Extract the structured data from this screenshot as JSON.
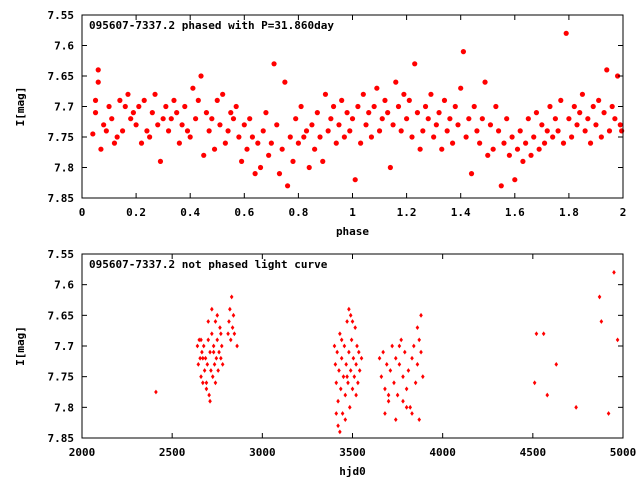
{
  "chart_data": [
    {
      "type": "scatter",
      "title": "095607-7337.2 phased with P=31.860day",
      "xlabel": "phase",
      "ylabel": "I[mag]",
      "xlim": [
        0,
        2
      ],
      "ylim": [
        7.85,
        7.55
      ],
      "y_inverted": true,
      "grid": false,
      "legend": "none",
      "marker": "filled-circle",
      "color": "#ff0000",
      "xticks": [
        0,
        0.2,
        0.4,
        0.6,
        0.8,
        1,
        1.2,
        1.4,
        1.6,
        1.8,
        2
      ],
      "xtick_labels": [
        "0",
        "0.2",
        "0.4",
        "0.6",
        "0.8",
        "1",
        "1.2",
        "1.4",
        "1.6",
        "1.8",
        "2"
      ],
      "yticks": [
        7.55,
        7.6,
        7.65,
        7.7,
        7.75,
        7.8,
        7.85
      ],
      "ytick_labels": [
        "7.55",
        "7.6",
        "7.65",
        "7.7",
        "7.75",
        "7.8",
        "7.85"
      ],
      "points": [
        [
          0.04,
          7.745
        ],
        [
          0.05,
          7.71
        ],
        [
          0.05,
          7.69
        ],
        [
          0.06,
          7.66
        ],
        [
          0.06,
          7.64
        ],
        [
          0.07,
          7.77
        ],
        [
          0.08,
          7.73
        ],
        [
          0.09,
          7.74
        ],
        [
          0.1,
          7.7
        ],
        [
          0.11,
          7.72
        ],
        [
          0.12,
          7.76
        ],
        [
          0.13,
          7.75
        ],
        [
          0.14,
          7.69
        ],
        [
          0.15,
          7.74
        ],
        [
          0.16,
          7.7
        ],
        [
          0.17,
          7.68
        ],
        [
          0.18,
          7.72
        ],
        [
          0.19,
          7.71
        ],
        [
          0.2,
          7.73
        ],
        [
          0.21,
          7.7
        ],
        [
          0.22,
          7.76
        ],
        [
          0.23,
          7.69
        ],
        [
          0.24,
          7.74
        ],
        [
          0.25,
          7.75
        ],
        [
          0.26,
          7.71
        ],
        [
          0.27,
          7.68
        ],
        [
          0.28,
          7.73
        ],
        [
          0.29,
          7.79
        ],
        [
          0.3,
          7.72
        ],
        [
          0.31,
          7.7
        ],
        [
          0.32,
          7.74
        ],
        [
          0.33,
          7.72
        ],
        [
          0.34,
          7.69
        ],
        [
          0.35,
          7.71
        ],
        [
          0.36,
          7.76
        ],
        [
          0.37,
          7.73
        ],
        [
          0.38,
          7.7
        ],
        [
          0.39,
          7.74
        ],
        [
          0.4,
          7.75
        ],
        [
          0.41,
          7.67
        ],
        [
          0.42,
          7.72
        ],
        [
          0.43,
          7.69
        ],
        [
          0.44,
          7.65
        ],
        [
          0.45,
          7.78
        ],
        [
          0.46,
          7.71
        ],
        [
          0.47,
          7.74
        ],
        [
          0.48,
          7.72
        ],
        [
          0.49,
          7.77
        ],
        [
          0.5,
          7.69
        ],
        [
          0.51,
          7.73
        ],
        [
          0.52,
          7.68
        ],
        [
          0.53,
          7.76
        ],
        [
          0.54,
          7.74
        ],
        [
          0.55,
          7.71
        ],
        [
          0.56,
          7.72
        ],
        [
          0.57,
          7.7
        ],
        [
          0.58,
          7.75
        ],
        [
          0.59,
          7.79
        ],
        [
          0.6,
          7.73
        ],
        [
          0.61,
          7.77
        ],
        [
          0.62,
          7.72
        ],
        [
          0.63,
          7.75
        ],
        [
          0.64,
          7.81
        ],
        [
          0.65,
          7.76
        ],
        [
          0.66,
          7.8
        ],
        [
          0.67,
          7.74
        ],
        [
          0.68,
          7.71
        ],
        [
          0.69,
          7.78
        ],
        [
          0.7,
          7.76
        ],
        [
          0.71,
          7.63
        ],
        [
          0.72,
          7.73
        ],
        [
          0.73,
          7.81
        ],
        [
          0.74,
          7.77
        ],
        [
          0.75,
          7.66
        ],
        [
          0.76,
          7.83
        ],
        [
          0.77,
          7.75
        ],
        [
          0.78,
          7.79
        ],
        [
          0.79,
          7.72
        ],
        [
          0.8,
          7.76
        ],
        [
          0.81,
          7.7
        ],
        [
          0.82,
          7.75
        ],
        [
          0.83,
          7.74
        ],
        [
          0.84,
          7.8
        ],
        [
          0.85,
          7.73
        ],
        [
          0.86,
          7.77
        ],
        [
          0.87,
          7.71
        ],
        [
          0.88,
          7.75
        ],
        [
          0.89,
          7.79
        ],
        [
          0.9,
          7.68
        ],
        [
          0.91,
          7.74
        ],
        [
          0.92,
          7.72
        ],
        [
          0.93,
          7.7
        ],
        [
          0.94,
          7.76
        ],
        [
          0.95,
          7.73
        ],
        [
          0.96,
          7.69
        ],
        [
          0.97,
          7.75
        ],
        [
          0.98,
          7.71
        ],
        [
          0.99,
          7.74
        ],
        [
          1.0,
          7.72
        ],
        [
          1.01,
          7.82
        ],
        [
          1.02,
          7.7
        ],
        [
          1.03,
          7.76
        ],
        [
          1.04,
          7.68
        ],
        [
          1.05,
          7.73
        ],
        [
          1.06,
          7.71
        ],
        [
          1.07,
          7.75
        ],
        [
          1.08,
          7.7
        ],
        [
          1.09,
          7.67
        ],
        [
          1.1,
          7.74
        ],
        [
          1.11,
          7.72
        ],
        [
          1.12,
          7.69
        ],
        [
          1.13,
          7.71
        ],
        [
          1.14,
          7.8
        ],
        [
          1.15,
          7.73
        ],
        [
          1.16,
          7.66
        ],
        [
          1.17,
          7.7
        ],
        [
          1.18,
          7.74
        ],
        [
          1.19,
          7.68
        ],
        [
          1.2,
          7.72
        ],
        [
          1.21,
          7.69
        ],
        [
          1.22,
          7.75
        ],
        [
          1.23,
          7.63
        ],
        [
          1.24,
          7.71
        ],
        [
          1.25,
          7.77
        ],
        [
          1.26,
          7.74
        ],
        [
          1.27,
          7.7
        ],
        [
          1.28,
          7.72
        ],
        [
          1.29,
          7.68
        ],
        [
          1.3,
          7.75
        ],
        [
          1.31,
          7.73
        ],
        [
          1.32,
          7.71
        ],
        [
          1.33,
          7.77
        ],
        [
          1.34,
          7.69
        ],
        [
          1.35,
          7.74
        ],
        [
          1.36,
          7.72
        ],
        [
          1.37,
          7.76
        ],
        [
          1.38,
          7.7
        ],
        [
          1.39,
          7.73
        ],
        [
          1.4,
          7.67
        ],
        [
          1.41,
          7.61
        ],
        [
          1.42,
          7.75
        ],
        [
          1.43,
          7.72
        ],
        [
          1.44,
          7.81
        ],
        [
          1.45,
          7.7
        ],
        [
          1.46,
          7.74
        ],
        [
          1.47,
          7.76
        ],
        [
          1.48,
          7.72
        ],
        [
          1.49,
          7.66
        ],
        [
          1.5,
          7.78
        ],
        [
          1.51,
          7.73
        ],
        [
          1.52,
          7.77
        ],
        [
          1.53,
          7.7
        ],
        [
          1.54,
          7.74
        ],
        [
          1.55,
          7.83
        ],
        [
          1.56,
          7.76
        ],
        [
          1.57,
          7.72
        ],
        [
          1.58,
          7.78
        ],
        [
          1.59,
          7.75
        ],
        [
          1.6,
          7.82
        ],
        [
          1.61,
          7.77
        ],
        [
          1.62,
          7.74
        ],
        [
          1.63,
          7.79
        ],
        [
          1.64,
          7.76
        ],
        [
          1.65,
          7.72
        ],
        [
          1.66,
          7.78
        ],
        [
          1.67,
          7.75
        ],
        [
          1.68,
          7.71
        ],
        [
          1.69,
          7.77
        ],
        [
          1.7,
          7.73
        ],
        [
          1.71,
          7.76
        ],
        [
          1.72,
          7.74
        ],
        [
          1.73,
          7.7
        ],
        [
          1.74,
          7.75
        ],
        [
          1.75,
          7.72
        ],
        [
          1.76,
          7.74
        ],
        [
          1.77,
          7.69
        ],
        [
          1.78,
          7.76
        ],
        [
          1.79,
          7.58
        ],
        [
          1.8,
          7.72
        ],
        [
          1.81,
          7.75
        ],
        [
          1.82,
          7.7
        ],
        [
          1.83,
          7.73
        ],
        [
          1.84,
          7.71
        ],
        [
          1.85,
          7.68
        ],
        [
          1.86,
          7.74
        ],
        [
          1.87,
          7.72
        ],
        [
          1.88,
          7.76
        ],
        [
          1.89,
          7.7
        ],
        [
          1.9,
          7.73
        ],
        [
          1.91,
          7.69
        ],
        [
          1.92,
          7.75
        ],
        [
          1.93,
          7.71
        ],
        [
          1.94,
          7.64
        ],
        [
          1.95,
          7.74
        ],
        [
          1.96,
          7.7
        ],
        [
          1.97,
          7.72
        ],
        [
          1.98,
          7.65
        ],
        [
          1.99,
          7.73
        ],
        [
          1.995,
          7.74
        ]
      ]
    },
    {
      "type": "scatter",
      "title": "095607-7337.2 not phased light curve",
      "xlabel": "hjd0",
      "ylabel": "I[mag]",
      "xlim": [
        2000,
        5000
      ],
      "ylim": [
        7.85,
        7.55
      ],
      "y_inverted": true,
      "grid": false,
      "legend": "none",
      "marker": "filled-diamond",
      "color": "#ff0000",
      "xticks": [
        2000,
        2500,
        3000,
        3500,
        4000,
        4500,
        5000
      ],
      "xtick_labels": [
        "2000",
        "2500",
        "3000",
        "3500",
        "4000",
        "4500",
        "5000"
      ],
      "yticks": [
        7.55,
        7.6,
        7.65,
        7.7,
        7.75,
        7.8,
        7.85
      ],
      "ytick_labels": [
        "7.55",
        "7.6",
        "7.65",
        "7.7",
        "7.75",
        "7.8",
        "7.85"
      ],
      "points": [
        [
          2410,
          7.775
        ],
        [
          2640,
          7.7
        ],
        [
          2645,
          7.73
        ],
        [
          2650,
          7.69
        ],
        [
          2655,
          7.72
        ],
        [
          2660,
          7.75
        ],
        [
          2665,
          7.71
        ],
        [
          2670,
          7.76
        ],
        [
          2675,
          7.7
        ],
        [
          2680,
          7.74
        ],
        [
          2685,
          7.72
        ],
        [
          2690,
          7.77
        ],
        [
          2695,
          7.73
        ],
        [
          2700,
          7.69
        ],
        [
          2705,
          7.78
        ],
        [
          2710,
          7.71
        ],
        [
          2715,
          7.74
        ],
        [
          2720,
          7.68
        ],
        [
          2725,
          7.75
        ],
        [
          2730,
          7.7
        ],
        [
          2735,
          7.73
        ],
        [
          2740,
          7.66
        ],
        [
          2745,
          7.72
        ],
        [
          2750,
          7.69
        ],
        [
          2755,
          7.74
        ],
        [
          2760,
          7.71
        ],
        [
          2765,
          7.67
        ],
        [
          2770,
          7.72
        ],
        [
          2775,
          7.7
        ],
        [
          2780,
          7.73
        ],
        [
          2700,
          7.66
        ],
        [
          2710,
          7.79
        ],
        [
          2720,
          7.64
        ],
        [
          2690,
          7.76
        ],
        [
          2670,
          7.72
        ],
        [
          2660,
          7.69
        ],
        [
          2730,
          7.71
        ],
        [
          2750,
          7.65
        ],
        [
          2770,
          7.68
        ],
        [
          2740,
          7.76
        ],
        [
          2810,
          7.68
        ],
        [
          2815,
          7.66
        ],
        [
          2820,
          7.64
        ],
        [
          2825,
          7.69
        ],
        [
          2830,
          7.62
        ],
        [
          2835,
          7.67
        ],
        [
          2840,
          7.65
        ],
        [
          2845,
          7.68
        ],
        [
          2860,
          7.7
        ],
        [
          3400,
          7.7
        ],
        [
          3405,
          7.73
        ],
        [
          3410,
          7.76
        ],
        [
          3415,
          7.71
        ],
        [
          3420,
          7.79
        ],
        [
          3425,
          7.74
        ],
        [
          3430,
          7.68
        ],
        [
          3435,
          7.77
        ],
        [
          3440,
          7.72
        ],
        [
          3445,
          7.81
        ],
        [
          3450,
          7.75
        ],
        [
          3455,
          7.7
        ],
        [
          3460,
          7.78
        ],
        [
          3465,
          7.73
        ],
        [
          3470,
          7.66
        ],
        [
          3475,
          7.76
        ],
        [
          3480,
          7.71
        ],
        [
          3485,
          7.8
        ],
        [
          3490,
          7.74
        ],
        [
          3495,
          7.69
        ],
        [
          3500,
          7.77
        ],
        [
          3505,
          7.72
        ],
        [
          3510,
          7.75
        ],
        [
          3515,
          7.67
        ],
        [
          3520,
          7.73
        ],
        [
          3525,
          7.7
        ],
        [
          3530,
          7.76
        ],
        [
          3535,
          7.71
        ],
        [
          3540,
          7.74
        ],
        [
          3550,
          7.72
        ],
        [
          3420,
          7.83
        ],
        [
          3430,
          7.84
        ],
        [
          3480,
          7.64
        ],
        [
          3490,
          7.65
        ],
        [
          3500,
          7.66
        ],
        [
          3460,
          7.82
        ],
        [
          3440,
          7.69
        ],
        [
          3520,
          7.78
        ],
        [
          3470,
          7.75
        ],
        [
          3410,
          7.81
        ],
        [
          3650,
          7.72
        ],
        [
          3660,
          7.75
        ],
        [
          3670,
          7.71
        ],
        [
          3680,
          7.77
        ],
        [
          3690,
          7.73
        ],
        [
          3700,
          7.79
        ],
        [
          3710,
          7.74
        ],
        [
          3720,
          7.7
        ],
        [
          3730,
          7.76
        ],
        [
          3740,
          7.72
        ],
        [
          3750,
          7.78
        ],
        [
          3760,
          7.73
        ],
        [
          3770,
          7.69
        ],
        [
          3780,
          7.75
        ],
        [
          3790,
          7.71
        ],
        [
          3800,
          7.77
        ],
        [
          3810,
          7.74
        ],
        [
          3820,
          7.8
        ],
        [
          3830,
          7.72
        ],
        [
          3840,
          7.7
        ],
        [
          3850,
          7.76
        ],
        [
          3860,
          7.73
        ],
        [
          3870,
          7.69
        ],
        [
          3880,
          7.71
        ],
        [
          3890,
          7.75
        ],
        [
          3680,
          7.81
        ],
        [
          3700,
          7.78
        ],
        [
          3740,
          7.82
        ],
        [
          3780,
          7.79
        ],
        [
          3760,
          7.7
        ],
        [
          3800,
          7.8
        ],
        [
          3830,
          7.81
        ],
        [
          3870,
          7.82
        ],
        [
          3860,
          7.67
        ],
        [
          3880,
          7.65
        ],
        [
          4510,
          7.76
        ],
        [
          4520,
          7.68
        ],
        [
          4560,
          7.68
        ],
        [
          4580,
          7.78
        ],
        [
          4630,
          7.73
        ],
        [
          4740,
          7.8
        ],
        [
          4870,
          7.62
        ],
        [
          4880,
          7.66
        ],
        [
          4920,
          7.81
        ],
        [
          4950,
          7.58
        ],
        [
          4970,
          7.69
        ]
      ]
    }
  ]
}
